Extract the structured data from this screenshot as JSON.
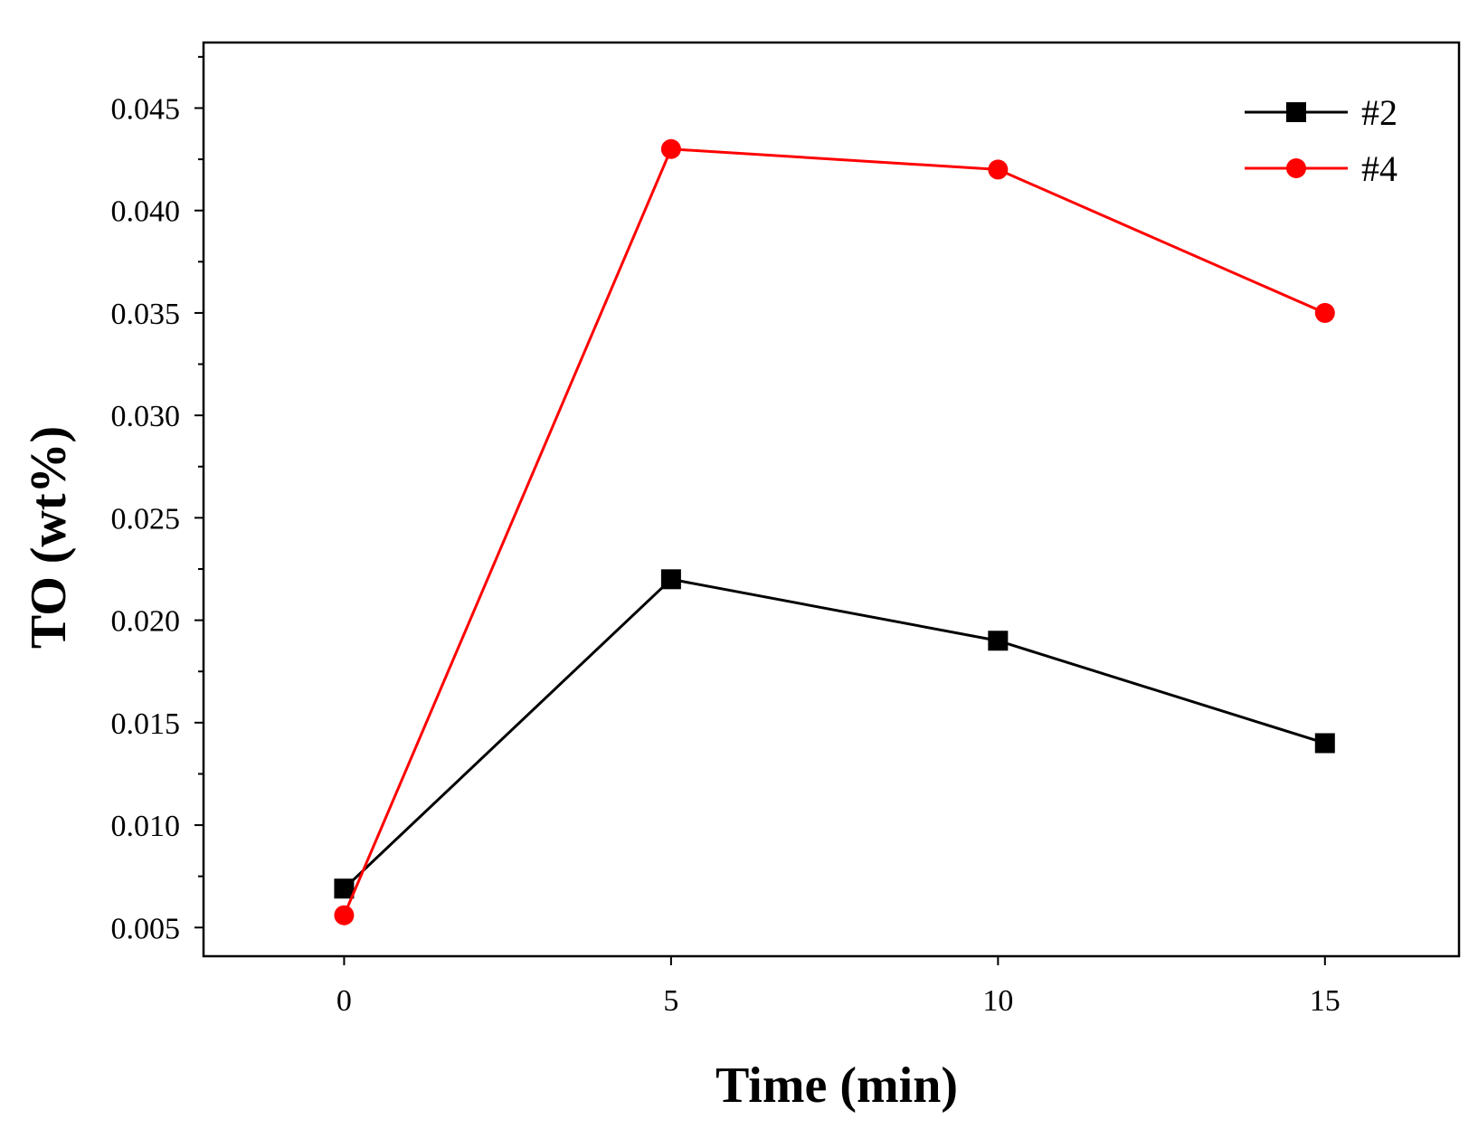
{
  "chart_data": {
    "type": "line",
    "title": "",
    "xlabel": "Time (min)",
    "ylabel": "TO (wt%)",
    "xlim": [
      -2.15,
      17.05
    ],
    "ylim": [
      0.0036,
      0.0482
    ],
    "xticks": [
      0,
      5,
      10,
      15
    ],
    "xtick_labels": [
      "0",
      "5",
      "10",
      "15"
    ],
    "yticks": [
      0.005,
      0.01,
      0.015,
      0.02,
      0.025,
      0.03,
      0.035,
      0.04,
      0.045
    ],
    "ytick_labels": [
      "0.005",
      "0.010",
      "0.015",
      "0.020",
      "0.025",
      "0.030",
      "0.035",
      "0.040",
      "0.045"
    ],
    "x": [
      0,
      5,
      10,
      15
    ],
    "series": [
      {
        "name": "#2",
        "values": [
          0.0069,
          0.022,
          0.019,
          0.014
        ],
        "color": "#000000",
        "marker": "square"
      },
      {
        "name": "#4",
        "values": [
          0.0056,
          0.043,
          0.042,
          0.035
        ],
        "color": "#ff0000",
        "marker": "circle"
      }
    ],
    "grid": false,
    "legend_position": "top-right"
  }
}
